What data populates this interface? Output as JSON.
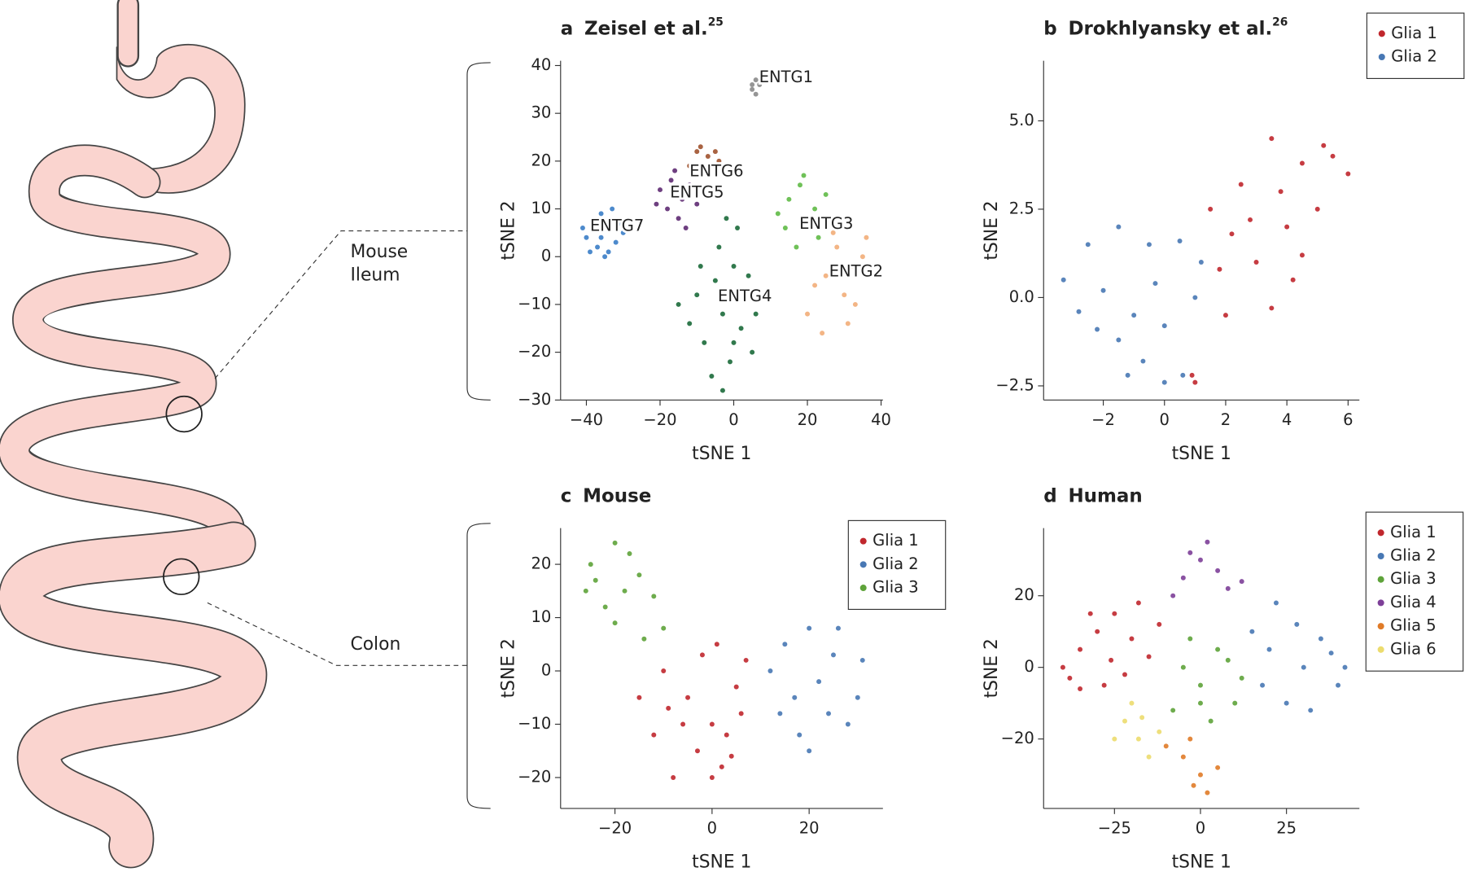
{
  "illustration": {
    "ileum_label": [
      "Mouse",
      "Ileum"
    ],
    "colon_label": "Colon"
  },
  "chart_data": [
    {
      "type": "scatter",
      "panel": "a",
      "title": "Zeisel et al.",
      "title_ref": "25",
      "xlabel": "tSNE 1",
      "ylabel": "tSNE 2",
      "xlim": [
        -47,
        40.5
      ],
      "ylim": [
        -30,
        41
      ],
      "xticks": [
        {
          "value": -40,
          "label": "−40"
        },
        {
          "value": -20,
          "label": "−20"
        },
        0,
        20,
        40
      ],
      "yticks": [
        {
          "value": -30,
          "label": "−30"
        },
        {
          "value": -20,
          "label": "−20"
        },
        {
          "value": -10,
          "label": "−10"
        },
        0,
        10,
        20,
        30,
        40
      ],
      "legend": "none",
      "cluster_labels": true,
      "series": [
        {
          "name": "ENTG1",
          "color": "#8a8a8a",
          "values": [
            [
              5,
              35
            ],
            [
              6,
              37
            ],
            [
              7,
              36
            ],
            [
              6,
              34
            ],
            [
              8,
              37
            ],
            [
              5,
              36
            ]
          ]
        },
        {
          "name": "ENTG2",
          "color": "#f2ad78",
          "values": [
            [
              28,
              2
            ],
            [
              32,
              -2
            ],
            [
              35,
              0
            ],
            [
              25,
              -4
            ],
            [
              30,
              -8
            ],
            [
              36,
              4
            ],
            [
              22,
              -6
            ],
            [
              33,
              -10
            ],
            [
              27,
              5
            ],
            [
              20,
              -12
            ],
            [
              31,
              -14
            ],
            [
              24,
              -16
            ]
          ]
        },
        {
          "name": "ENTG3",
          "color": "#5fba46",
          "values": [
            [
              15,
              12
            ],
            [
              18,
              15
            ],
            [
              22,
              10
            ],
            [
              20,
              6
            ],
            [
              14,
              6
            ],
            [
              25,
              13
            ],
            [
              17,
              2
            ],
            [
              12,
              9
            ],
            [
              23,
              4
            ],
            [
              19,
              17
            ]
          ]
        },
        {
          "name": "ENTG4",
          "color": "#1b6a3a",
          "values": [
            [
              -5,
              -5
            ],
            [
              0,
              -2
            ],
            [
              -10,
              -8
            ],
            [
              -3,
              -12
            ],
            [
              2,
              -15
            ],
            [
              -8,
              -18
            ],
            [
              -1,
              -22
            ],
            [
              -12,
              -14
            ],
            [
              -6,
              -25
            ],
            [
              3,
              -8
            ],
            [
              -4,
              2
            ],
            [
              1,
              6
            ],
            [
              -2,
              8
            ],
            [
              5,
              -20
            ],
            [
              -9,
              -2
            ],
            [
              4,
              -4
            ],
            [
              -15,
              -10
            ],
            [
              0,
              -18
            ],
            [
              -3,
              -28
            ],
            [
              6,
              -12
            ]
          ]
        },
        {
          "name": "ENTG5",
          "color": "#5e2a72",
          "values": [
            [
              -20,
              14
            ],
            [
              -17,
              16
            ],
            [
              -14,
              12
            ],
            [
              -18,
              10
            ],
            [
              -12,
              15
            ],
            [
              -15,
              8
            ],
            [
              -21,
              11
            ],
            [
              -10,
              11
            ],
            [
              -16,
              18
            ],
            [
              -13,
              6
            ]
          ]
        },
        {
          "name": "ENTG6",
          "color": "#a0522d",
          "values": [
            [
              -10,
              22
            ],
            [
              -7,
              21
            ],
            [
              -4,
              20
            ],
            [
              -12,
              19
            ],
            [
              -5,
              22
            ],
            [
              -8,
              18
            ],
            [
              -2,
              19
            ],
            [
              -9,
              23
            ]
          ]
        },
        {
          "name": "ENTG7",
          "color": "#3a7dc6",
          "values": [
            [
              -40,
              4
            ],
            [
              -38,
              7
            ],
            [
              -36,
              9
            ],
            [
              -34,
              6
            ],
            [
              -32,
              3
            ],
            [
              -30,
              5
            ],
            [
              -37,
              2
            ],
            [
              -35,
              0
            ],
            [
              -39,
              1
            ],
            [
              -33,
              10
            ],
            [
              -41,
              6
            ],
            [
              -36,
              4
            ],
            [
              -31,
              7
            ],
            [
              -34,
              1
            ]
          ]
        }
      ]
    },
    {
      "type": "scatter",
      "panel": "b",
      "title": "Drokhlyansky et al.",
      "title_ref": "26",
      "xlabel": "tSNE 1",
      "ylabel": "tSNE 2",
      "xlim": [
        -3.95,
        6.37
      ],
      "ylim": [
        -2.9,
        6.7
      ],
      "xticks": [
        {
          "value": -2,
          "label": "−2"
        },
        0,
        2,
        4,
        6
      ],
      "yticks": [
        {
          "value": -2.5,
          "label": "−2.5"
        },
        {
          "value": 0,
          "label": "0.0"
        },
        2.5,
        {
          "value": 5,
          "label": "5.0"
        }
      ],
      "legend": "outside-right",
      "series": [
        {
          "name": "Glia 1",
          "color": "#c0272d",
          "values": [
            [
              1.5,
              2.5
            ],
            [
              2.5,
              3.2
            ],
            [
              3.5,
              4.5
            ],
            [
              4.5,
              3.8
            ],
            [
              5.5,
              4
            ],
            [
              6,
              3.5
            ],
            [
              5,
              2.5
            ],
            [
              4,
              2
            ],
            [
              3,
              1
            ],
            [
              2,
              -0.5
            ],
            [
              3.5,
              -0.3
            ],
            [
              4.2,
              0.5
            ],
            [
              2.8,
              2.2
            ],
            [
              3.8,
              3
            ],
            [
              5.2,
              4.3
            ],
            [
              1.8,
              0.8
            ],
            [
              0.9,
              -2.2
            ],
            [
              1,
              -2.4
            ],
            [
              4.5,
              1.2
            ],
            [
              2.2,
              1.8
            ]
          ]
        },
        {
          "name": "Glia 2",
          "color": "#4878b4",
          "values": [
            [
              -3.3,
              0.5
            ],
            [
              -2.5,
              1.5
            ],
            [
              -1.5,
              2
            ],
            [
              -0.5,
              1.5
            ],
            [
              0.5,
              1.6
            ],
            [
              1.2,
              1
            ],
            [
              -2,
              0.2
            ],
            [
              -1,
              -0.5
            ],
            [
              0,
              -0.8
            ],
            [
              -2.8,
              -0.4
            ],
            [
              -1.5,
              -1.2
            ],
            [
              -0.7,
              -1.8
            ],
            [
              0,
              -2.4
            ],
            [
              0.6,
              -2.2
            ],
            [
              -1.2,
              -2.2
            ],
            [
              1,
              0
            ],
            [
              -0.3,
              0.4
            ],
            [
              -2.2,
              -0.9
            ]
          ]
        }
      ]
    },
    {
      "type": "scatter",
      "panel": "c",
      "title": "Mouse",
      "xlabel": "tSNE 1",
      "ylabel": "tSNE 2",
      "xlim": [
        -31.2,
        35.2
      ],
      "ylim": [
        -25.8,
        26.8
      ],
      "xticks": [
        {
          "value": -20,
          "label": "−20"
        },
        0,
        20
      ],
      "yticks": [
        {
          "value": -20,
          "label": "−20"
        },
        {
          "value": -10,
          "label": "−10"
        },
        0,
        10,
        20
      ],
      "legend": "upper-right",
      "series": [
        {
          "name": "Glia 1",
          "color": "#c0272d",
          "values": [
            [
              -10,
              0
            ],
            [
              -5,
              -5
            ],
            [
              0,
              -10
            ],
            [
              5,
              -3
            ],
            [
              -3,
              -15
            ],
            [
              2,
              -18
            ],
            [
              -8,
              -20
            ],
            [
              7,
              2
            ],
            [
              -15,
              -5
            ],
            [
              -2,
              3
            ],
            [
              3,
              -12
            ],
            [
              -6,
              -10
            ],
            [
              0,
              -20
            ],
            [
              6,
              -8
            ],
            [
              -12,
              -12
            ],
            [
              1,
              5
            ],
            [
              -9,
              -7
            ],
            [
              4,
              -16
            ]
          ]
        },
        {
          "name": "Glia 2",
          "color": "#4878b4",
          "values": [
            [
              12,
              0
            ],
            [
              15,
              5
            ],
            [
              20,
              8
            ],
            [
              25,
              3
            ],
            [
              30,
              -5
            ],
            [
              28,
              -10
            ],
            [
              18,
              -12
            ],
            [
              22,
              -2
            ],
            [
              14,
              -8
            ],
            [
              26,
              8
            ],
            [
              20,
              -15
            ],
            [
              31,
              2
            ],
            [
              17,
              -5
            ],
            [
              24,
              -8
            ]
          ]
        },
        {
          "name": "Glia 3",
          "color": "#5ea33a",
          "values": [
            [
              -25,
              20
            ],
            [
              -20,
              24
            ],
            [
              -15,
              18
            ],
            [
              -22,
              12
            ],
            [
              -18,
              15
            ],
            [
              -12,
              14
            ],
            [
              -26,
              15
            ],
            [
              -10,
              8
            ],
            [
              -14,
              6
            ],
            [
              -17,
              22
            ],
            [
              -20,
              9
            ],
            [
              -24,
              17
            ]
          ]
        }
      ]
    },
    {
      "type": "scatter",
      "panel": "d",
      "title": "Human",
      "xlabel": "tSNE 1",
      "ylabel": "tSNE 2",
      "xlim": [
        -45.6,
        46.2
      ],
      "ylim": [
        -39.4,
        38.9
      ],
      "xticks": [
        {
          "value": -25,
          "label": "−25"
        },
        0,
        25
      ],
      "yticks": [
        {
          "value": -20,
          "label": "−20"
        },
        0,
        20
      ],
      "legend": "outside-right",
      "series": [
        {
          "name": "Glia 1",
          "color": "#c0272d",
          "values": [
            [
              -40,
              0
            ],
            [
              -35,
              5
            ],
            [
              -30,
              10
            ],
            [
              -25,
              15
            ],
            [
              -20,
              8
            ],
            [
              -15,
              3
            ],
            [
              -28,
              -5
            ],
            [
              -38,
              -3
            ],
            [
              -32,
              15
            ],
            [
              -22,
              -2
            ],
            [
              -12,
              12
            ],
            [
              -35,
              -6
            ],
            [
              -18,
              18
            ],
            [
              -26,
              2
            ]
          ]
        },
        {
          "name": "Glia 2",
          "color": "#4878b4",
          "values": [
            [
              15,
              10
            ],
            [
              20,
              5
            ],
            [
              30,
              0
            ],
            [
              40,
              -5
            ],
            [
              35,
              8
            ],
            [
              25,
              -10
            ],
            [
              18,
              -5
            ],
            [
              42,
              0
            ],
            [
              28,
              12
            ],
            [
              22,
              18
            ],
            [
              32,
              -12
            ],
            [
              38,
              4
            ]
          ]
        },
        {
          "name": "Glia 3",
          "color": "#5ea33a",
          "values": [
            [
              -5,
              0
            ],
            [
              0,
              -5
            ],
            [
              5,
              5
            ],
            [
              10,
              -10
            ],
            [
              -8,
              -12
            ],
            [
              3,
              -15
            ],
            [
              8,
              2
            ],
            [
              -3,
              8
            ],
            [
              12,
              -3
            ],
            [
              0,
              -10
            ]
          ]
        },
        {
          "name": "Glia 4",
          "color": "#7d3f98",
          "values": [
            [
              -5,
              25
            ],
            [
              0,
              30
            ],
            [
              5,
              27
            ],
            [
              -3,
              32
            ],
            [
              8,
              22
            ],
            [
              -8,
              20
            ],
            [
              2,
              35
            ],
            [
              12,
              24
            ]
          ]
        },
        {
          "name": "Glia 5",
          "color": "#e07b28",
          "values": [
            [
              -5,
              -25
            ],
            [
              0,
              -30
            ],
            [
              2,
              -35
            ],
            [
              -3,
              -20
            ],
            [
              5,
              -28
            ],
            [
              -10,
              -22
            ],
            [
              -2,
              -33
            ]
          ]
        },
        {
          "name": "Glia 6",
          "color": "#ecdc6e",
          "values": [
            [
              -22,
              -15
            ],
            [
              -18,
              -20
            ],
            [
              -15,
              -25
            ],
            [
              -25,
              -20
            ],
            [
              -20,
              -10
            ],
            [
              -12,
              -18
            ],
            [
              -17,
              -14
            ]
          ]
        }
      ]
    }
  ]
}
